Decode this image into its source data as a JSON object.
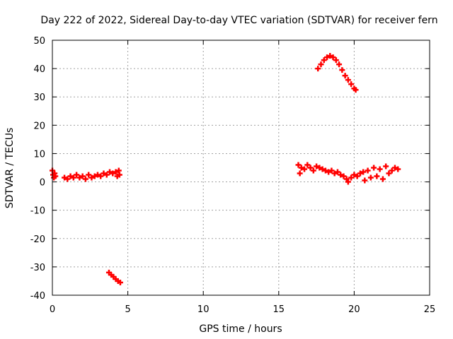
{
  "chart_data": {
    "type": "scatter",
    "title": "Day 222 of 2022, Sidereal Day-to-day VTEC variation (SDTVAR) for receiver fern",
    "xlabel": "GPS time / hours",
    "ylabel": "SDTVAR / TECUs",
    "xlim": [
      0,
      25
    ],
    "ylim": [
      -40,
      50
    ],
    "xticks": [
      0,
      5,
      10,
      15,
      20,
      25
    ],
    "yticks": [
      -40,
      -30,
      -20,
      -10,
      0,
      10,
      20,
      30,
      40,
      50
    ],
    "grid": true,
    "marker": "plus",
    "series": [
      {
        "name": "SDTVAR",
        "color": "#ff0000",
        "points": [
          [
            0.0,
            4.0
          ],
          [
            0.05,
            2.5
          ],
          [
            0.1,
            1.5
          ],
          [
            0.15,
            3.0
          ],
          [
            0.2,
            2.0
          ],
          [
            0.8,
            1.5
          ],
          [
            1.0,
            1.0
          ],
          [
            1.2,
            2.0
          ],
          [
            1.4,
            1.5
          ],
          [
            1.6,
            2.5
          ],
          [
            1.8,
            1.5
          ],
          [
            2.0,
            2.0
          ],
          [
            2.2,
            1.0
          ],
          [
            2.4,
            2.5
          ],
          [
            2.6,
            1.5
          ],
          [
            2.8,
            2.0
          ],
          [
            3.0,
            2.5
          ],
          [
            3.2,
            2.0
          ],
          [
            3.4,
            3.0
          ],
          [
            3.6,
            2.5
          ],
          [
            3.8,
            3.5
          ],
          [
            4.0,
            3.0
          ],
          [
            4.2,
            3.5
          ],
          [
            4.3,
            2.0
          ],
          [
            4.4,
            4.0
          ],
          [
            4.45,
            2.5
          ],
          [
            3.75,
            -32.0
          ],
          [
            3.9,
            -32.8
          ],
          [
            4.05,
            -33.5
          ],
          [
            4.2,
            -34.3
          ],
          [
            4.35,
            -35.0
          ],
          [
            4.5,
            -35.5
          ],
          [
            16.3,
            6.0
          ],
          [
            16.4,
            3.0
          ],
          [
            16.5,
            5.0
          ],
          [
            16.7,
            4.5
          ],
          [
            16.9,
            6.0
          ],
          [
            17.1,
            5.0
          ],
          [
            17.3,
            4.0
          ],
          [
            17.5,
            5.5
          ],
          [
            17.7,
            5.0
          ],
          [
            17.9,
            4.5
          ],
          [
            18.1,
            4.0
          ],
          [
            18.3,
            3.5
          ],
          [
            18.5,
            4.0
          ],
          [
            18.7,
            3.0
          ],
          [
            18.9,
            3.5
          ],
          [
            19.1,
            2.5
          ],
          [
            19.3,
            2.0
          ],
          [
            19.5,
            1.0
          ],
          [
            19.6,
            0.0
          ],
          [
            19.8,
            1.5
          ],
          [
            20.0,
            2.5
          ],
          [
            20.2,
            2.0
          ],
          [
            20.4,
            3.0
          ],
          [
            20.6,
            3.5
          ],
          [
            20.7,
            0.5
          ],
          [
            20.9,
            4.0
          ],
          [
            21.1,
            1.5
          ],
          [
            21.3,
            5.0
          ],
          [
            21.5,
            2.0
          ],
          [
            21.7,
            4.5
          ],
          [
            21.9,
            1.0
          ],
          [
            22.1,
            5.5
          ],
          [
            22.3,
            3.0
          ],
          [
            22.5,
            4.0
          ],
          [
            22.7,
            5.0
          ],
          [
            22.9,
            4.5
          ],
          [
            17.6,
            40.0
          ],
          [
            17.8,
            41.5
          ],
          [
            18.0,
            43.0
          ],
          [
            18.2,
            44.0
          ],
          [
            18.4,
            44.5
          ],
          [
            18.6,
            44.0
          ],
          [
            18.8,
            43.0
          ],
          [
            19.0,
            41.5
          ],
          [
            19.2,
            39.5
          ],
          [
            19.4,
            37.5
          ],
          [
            19.6,
            36.0
          ],
          [
            19.8,
            34.5
          ],
          [
            20.0,
            33.0
          ],
          [
            20.1,
            32.5
          ]
        ]
      }
    ]
  }
}
